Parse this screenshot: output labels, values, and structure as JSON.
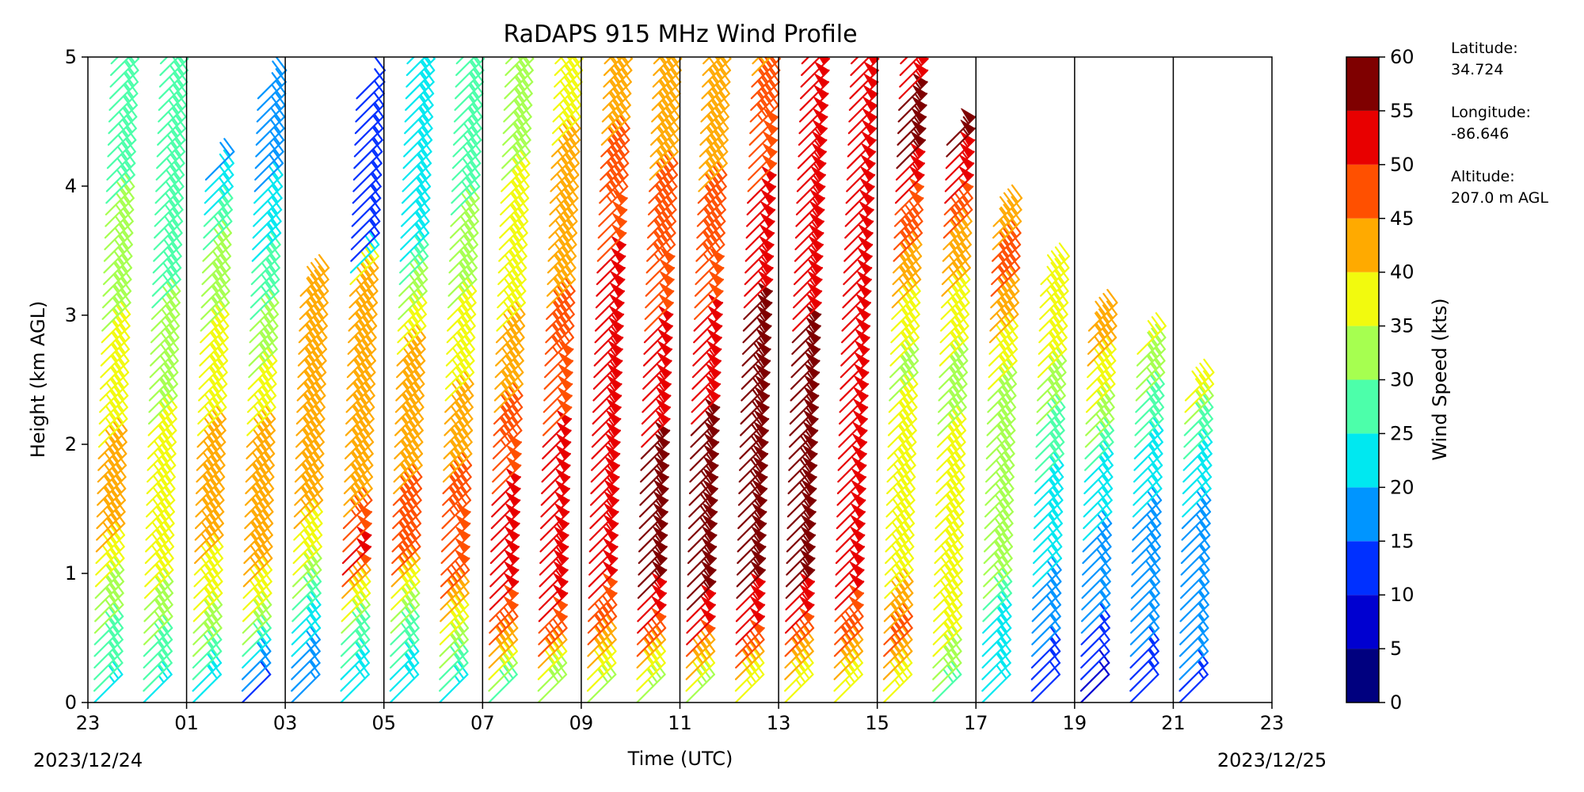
{
  "chart_data": {
    "type": "wind-barb profile",
    "title": "RaDAPS 915 MHz Wind Profile",
    "xlabel": "Time (UTC)",
    "ylabel": "Height (km AGL)",
    "x_tick_labels": [
      "23",
      "01",
      "03",
      "05",
      "07",
      "09",
      "11",
      "13",
      "15",
      "17",
      "19",
      "21",
      "23"
    ],
    "x_hours": [
      0,
      2,
      4,
      6,
      8,
      10,
      12,
      14,
      16,
      18,
      20,
      22,
      24
    ],
    "xlim": [
      0,
      24
    ],
    "start_date": "2023/12/24",
    "end_date": "2023/12/25",
    "y_ticks": [
      0,
      1,
      2,
      3,
      4,
      5
    ],
    "ylim": [
      0,
      5
    ],
    "vertical_gridlines": true,
    "colorbar": {
      "label": "Wind Speed (kts)",
      "ticks": [
        0,
        5,
        10,
        15,
        20,
        25,
        30,
        35,
        40,
        45,
        50,
        55,
        60
      ],
      "colors": [
        "#00007f",
        "#0000d0",
        "#0030ff",
        "#0095ff",
        "#00e8f0",
        "#4cffaa",
        "#a6ff50",
        "#f2fa0e",
        "#ffaa00",
        "#ff5000",
        "#e80000",
        "#7f0000"
      ]
    },
    "profiles": [
      {
        "time": 0.0,
        "top": 5.0,
        "speeds": [
          [
            0,
            24
          ],
          [
            0.5,
            30
          ],
          [
            1.0,
            38
          ],
          [
            1.5,
            44
          ],
          [
            2.2,
            38
          ],
          [
            3.2,
            33
          ],
          [
            4.5,
            27
          ],
          [
            5.0,
            26
          ]
        ]
      },
      {
        "time": 1.0,
        "top": 5.0,
        "speeds": [
          [
            0,
            24
          ],
          [
            0.5,
            32
          ],
          [
            1.0,
            38
          ],
          [
            1.6,
            40
          ],
          [
            2.3,
            33
          ],
          [
            3.5,
            28
          ],
          [
            5.0,
            30
          ]
        ]
      },
      {
        "time": 2.0,
        "top": 4.1,
        "speeds": [
          [
            0,
            20
          ],
          [
            0.5,
            34
          ],
          [
            1.0,
            40
          ],
          [
            1.6,
            44
          ],
          [
            2.3,
            37
          ],
          [
            3.3,
            33
          ],
          [
            4.1,
            18
          ]
        ]
      },
      {
        "time": 3.0,
        "top": 4.75,
        "speeds": [
          [
            0,
            12
          ],
          [
            0.5,
            34
          ],
          [
            1.0,
            42
          ],
          [
            1.6,
            44
          ],
          [
            2.3,
            37
          ],
          [
            3.1,
            28
          ],
          [
            4.0,
            19
          ],
          [
            4.75,
            18
          ]
        ]
      },
      {
        "time": 4.0,
        "top": 3.2,
        "speeds": [
          [
            0,
            15
          ],
          [
            0.5,
            22
          ],
          [
            1.0,
            37
          ],
          [
            1.7,
            45
          ],
          [
            2.5,
            44
          ],
          [
            3.2,
            44
          ]
        ]
      },
      {
        "time": 5.0,
        "top": 4.75,
        "speeds": [
          [
            0,
            20
          ],
          [
            0.5,
            30
          ],
          [
            1.0,
            52
          ],
          [
            1.5,
            44
          ],
          [
            2.3,
            44
          ],
          [
            3.2,
            42
          ],
          [
            3.4,
            14
          ],
          [
            4.2,
            13
          ],
          [
            4.75,
            12
          ]
        ]
      },
      {
        "time": 6.0,
        "top": 5.0,
        "speeds": [
          [
            0,
            22
          ],
          [
            0.5,
            30
          ],
          [
            1.0,
            46
          ],
          [
            1.6,
            45
          ],
          [
            2.5,
            43
          ],
          [
            3.5,
            23
          ],
          [
            5.0,
            24
          ]
        ]
      },
      {
        "time": 7.0,
        "top": 5.0,
        "speeds": [
          [
            0,
            24
          ],
          [
            0.5,
            38
          ],
          [
            1.0,
            50
          ],
          [
            1.8,
            44
          ],
          [
            3.0,
            35
          ],
          [
            4.0,
            28
          ],
          [
            5.0,
            26
          ]
        ]
      },
      {
        "time": 8.0,
        "top": 5.0,
        "speeds": [
          [
            0,
            28
          ],
          [
            0.4,
            46
          ],
          [
            0.8,
            52
          ],
          [
            1.6,
            50
          ],
          [
            2.5,
            42
          ],
          [
            3.5,
            36
          ],
          [
            5.0,
            33
          ]
        ]
      },
      {
        "time": 9.0,
        "top": 5.0,
        "speeds": [
          [
            0,
            30
          ],
          [
            0.4,
            48
          ],
          [
            0.8,
            53
          ],
          [
            1.6,
            52
          ],
          [
            2.5,
            48
          ],
          [
            3.5,
            42
          ],
          [
            5.0,
            38
          ]
        ]
      },
      {
        "time": 10.0,
        "top": 5.0,
        "speeds": [
          [
            0,
            32
          ],
          [
            0.4,
            46
          ],
          [
            0.8,
            50
          ],
          [
            1.5,
            55
          ],
          [
            2.5,
            53
          ],
          [
            3.2,
            52
          ],
          [
            3.6,
            48
          ],
          [
            4.5,
            44
          ],
          [
            5.0,
            43
          ]
        ]
      },
      {
        "time": 11.0,
        "top": 5.0,
        "speeds": [
          [
            0,
            33
          ],
          [
            0.4,
            48
          ],
          [
            0.8,
            55
          ],
          [
            1.6,
            57
          ],
          [
            2.5,
            52
          ],
          [
            3.5,
            46
          ],
          [
            5.0,
            43
          ]
        ]
      },
      {
        "time": 12.0,
        "top": 5.0,
        "speeds": [
          [
            0,
            34
          ],
          [
            0.4,
            50
          ],
          [
            0.8,
            57
          ],
          [
            1.5,
            58
          ],
          [
            2.5,
            53
          ],
          [
            3.5,
            46
          ],
          [
            5.0,
            42
          ]
        ]
      },
      {
        "time": 13.0,
        "top": 5.0,
        "speeds": [
          [
            0,
            35
          ],
          [
            0.4,
            50
          ],
          [
            0.8,
            56
          ],
          [
            1.6,
            58
          ],
          [
            2.5,
            58
          ],
          [
            3.5,
            52
          ],
          [
            5.0,
            44
          ]
        ]
      },
      {
        "time": 14.0,
        "top": 5.0,
        "speeds": [
          [
            0,
            36
          ],
          [
            0.4,
            48
          ],
          [
            0.8,
            56
          ],
          [
            1.6,
            58
          ],
          [
            2.5,
            56
          ],
          [
            3.5,
            53
          ],
          [
            5.0,
            52
          ]
        ]
      },
      {
        "time": 15.0,
        "top": 5.0,
        "speeds": [
          [
            0,
            36
          ],
          [
            0.4,
            46
          ],
          [
            0.8,
            52
          ],
          [
            1.6,
            50
          ],
          [
            2.5,
            52
          ],
          [
            3.5,
            50
          ],
          [
            5.0,
            52
          ]
        ]
      },
      {
        "time": 16.0,
        "top": 5.0,
        "speeds": [
          [
            0,
            36
          ],
          [
            0.4,
            46
          ],
          [
            0.8,
            40
          ],
          [
            1.6,
            38
          ],
          [
            2.5,
            34
          ],
          [
            3.5,
            46
          ],
          [
            4.2,
            56
          ],
          [
            5.0,
            54
          ]
        ]
      },
      {
        "time": 17.0,
        "top": 4.4,
        "speeds": [
          [
            0,
            28
          ],
          [
            0.4,
            37
          ],
          [
            0.8,
            38
          ],
          [
            1.6,
            36
          ],
          [
            2.5,
            34
          ],
          [
            3.5,
            44
          ],
          [
            4.2,
            56
          ],
          [
            4.4,
            56
          ]
        ]
      },
      {
        "time": 18.0,
        "top": 3.7,
        "speeds": [
          [
            0,
            22
          ],
          [
            0.5,
            24
          ],
          [
            1.0,
            34
          ],
          [
            1.6,
            30
          ],
          [
            2.5,
            36
          ],
          [
            3.2,
            46
          ],
          [
            3.7,
            44
          ]
        ]
      },
      {
        "time": 19.0,
        "top": 3.3,
        "speeds": [
          [
            0,
            10
          ],
          [
            0.5,
            18
          ],
          [
            1.0,
            21
          ],
          [
            1.8,
            26
          ],
          [
            2.5,
            35
          ],
          [
            3.3,
            40
          ]
        ]
      },
      {
        "time": 20.0,
        "top": 2.9,
        "speeds": [
          [
            0,
            8
          ],
          [
            0.5,
            15
          ],
          [
            1.0,
            19
          ],
          [
            1.6,
            22
          ],
          [
            2.2,
            35
          ],
          [
            2.9,
            44
          ]
        ]
      },
      {
        "time": 21.0,
        "top": 2.7,
        "speeds": [
          [
            0,
            12
          ],
          [
            0.5,
            17
          ],
          [
            1.0,
            18
          ],
          [
            1.6,
            21
          ],
          [
            2.2,
            28
          ],
          [
            2.7,
            36
          ]
        ]
      },
      {
        "time": 22.0,
        "top": 2.4,
        "speeds": [
          [
            0,
            14
          ],
          [
            0.5,
            17
          ],
          [
            1.0,
            17
          ],
          [
            1.6,
            22
          ],
          [
            2.0,
            27
          ],
          [
            2.4,
            41
          ]
        ]
      }
    ]
  },
  "info": {
    "latitude_label": "Latitude:",
    "latitude": "34.724",
    "longitude_label": "Longitude:",
    "longitude": "-86.646",
    "altitude_label": "Altitude:",
    "altitude": "207.0 m AGL"
  }
}
